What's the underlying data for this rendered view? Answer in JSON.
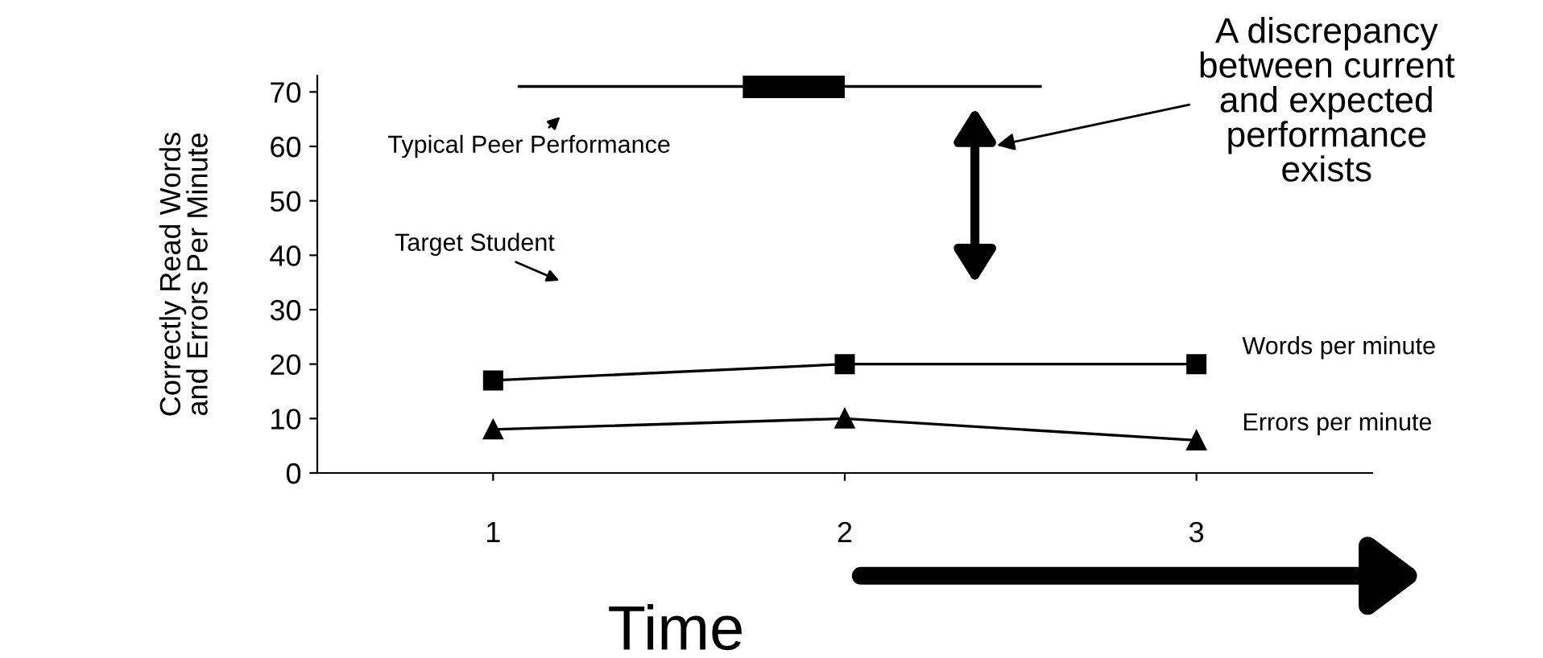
{
  "chart_data": {
    "type": "line",
    "xlabel": "Time",
    "ylabel": "Correctly Read Words\nand Errors Per Minute",
    "xlim": [
      0.5,
      3.5
    ],
    "xticks": [
      1,
      2,
      3
    ],
    "ylim": [
      0,
      73
    ],
    "yticks": [
      0,
      10,
      20,
      30,
      40,
      50,
      60,
      70
    ],
    "grid": false,
    "legend": false,
    "series": [
      {
        "name": "Words per minute",
        "color": "#000000",
        "marker": "square",
        "x": [
          1,
          2,
          3
        ],
        "values": [
          17,
          20,
          20
        ]
      },
      {
        "name": "Errors per minute",
        "color": "#000000",
        "marker": "triangle",
        "x": [
          1,
          2,
          3
        ],
        "values": [
          8,
          10,
          6
        ]
      },
      {
        "color": "#000000",
        "marker": "none",
        "x": [
          1.07,
          2.56
        ],
        "values": [
          71,
          71
        ]
      },
      {
        "color": "#000000",
        "marker": "none",
        "x": [
          1.71,
          2.0
        ],
        "values": [
          71,
          71
        ]
      }
    ],
    "annotations": [
      "Typical Peer Performance",
      "Target Student",
      "A discrepancy\nbetween current\nand expected\nperformance\nexists"
    ]
  }
}
